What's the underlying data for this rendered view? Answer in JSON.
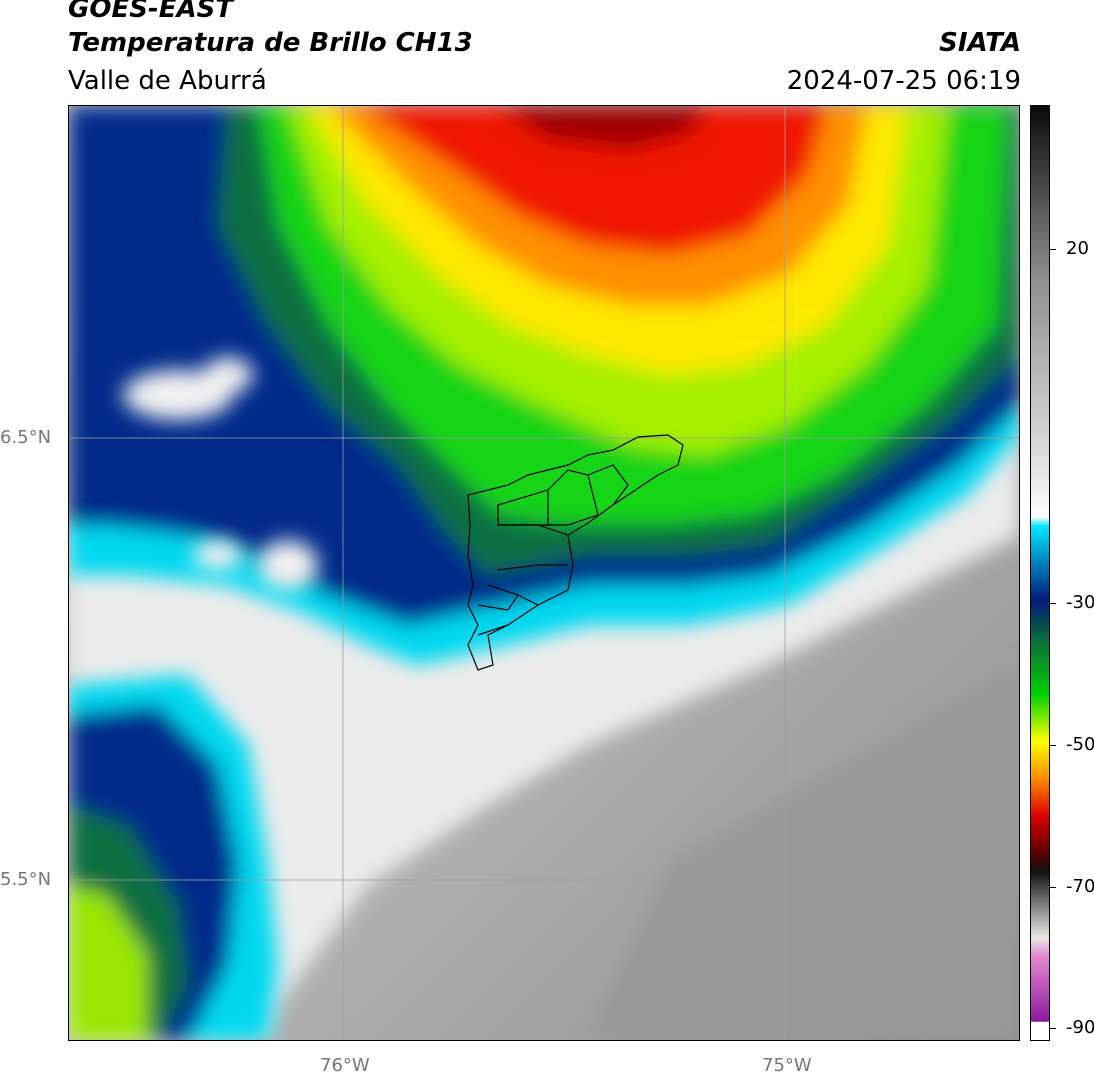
{
  "header": {
    "satellite": "GOES-EAST",
    "product": "Temperatura de Brillo CH13",
    "organization": "SIATA",
    "region": "Valle de Aburrá",
    "datetime": "2024-07-25 06:19"
  },
  "axes": {
    "lat_labels": [
      "6.5°N",
      "5.5°N"
    ],
    "lon_labels": [
      "76°W",
      "75°W"
    ]
  },
  "colorbar": {
    "tick_labels": [
      "20",
      "-30",
      "-50",
      "-70",
      "-90"
    ],
    "colors": {
      "white_low": "#ffffff",
      "magenta": "#8b1a9b",
      "pink": "#e48ad0",
      "dark_gray": "#111111",
      "dark_red": "#5a0000",
      "red": "#e00000",
      "orange": "#ff8c00",
      "yellow": "#ffff00",
      "green": "#00d000",
      "dark_green": "#0b6a3c",
      "navy": "#001a7a",
      "cyan": "#00e5ff",
      "light_gray": "#e8e8e8",
      "mid_gray": "#8c8c8c",
      "black": "#0a0a0a"
    }
  }
}
